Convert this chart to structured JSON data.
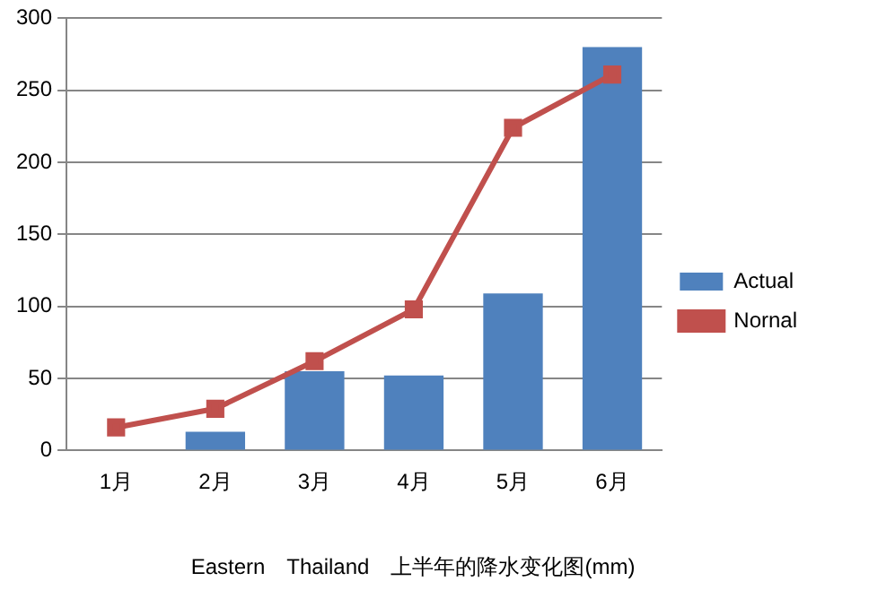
{
  "chart_data": {
    "type": "bar",
    "title": "Eastern　Thailand　上半年的降水变化图(mm)",
    "categories": [
      "1月",
      "2月",
      "3月",
      "4月",
      "5月",
      "6月"
    ],
    "series": [
      {
        "name": "Actual",
        "color": "#4f81bd",
        "values": [
          null,
          13,
          55,
          52,
          109,
          280
        ]
      },
      {
        "name": "Nornal",
        "type": "line",
        "color": "#c0504d",
        "values": [
          16,
          29,
          62,
          98,
          224,
          261
        ],
        "marker": "square"
      }
    ],
    "ylim": [
      0,
      300
    ],
    "yticks": [
      0,
      50,
      100,
      150,
      200,
      250,
      300
    ],
    "grid": "y",
    "legend": "right"
  }
}
